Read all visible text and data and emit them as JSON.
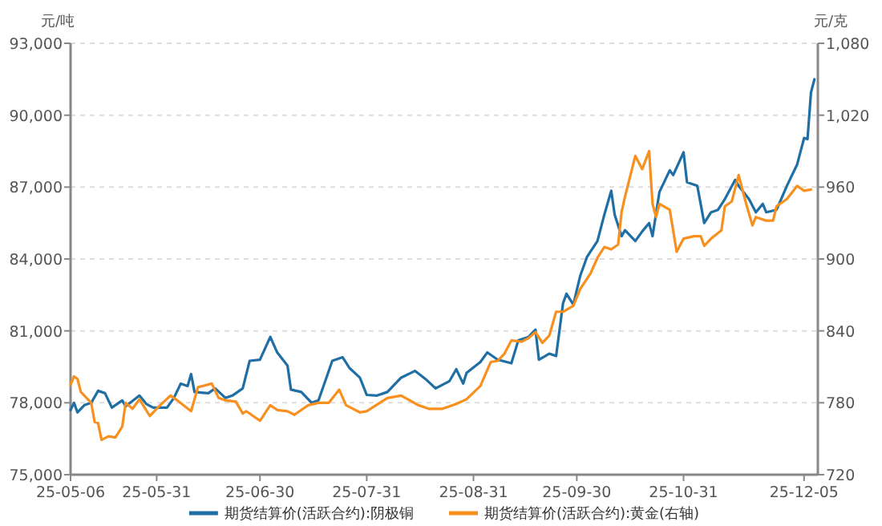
{
  "chart_data": {
    "type": "line",
    "ylabel": "元/吨",
    "y2label": "元/克",
    "legend": "bottom",
    "grid": "y",
    "marker": "none",
    "line_style": "solid",
    "xlim": [
      "--05-06",
      "--12-09"
    ],
    "xticks": [
      {
        "value": "--05-06",
        "label": "25-05-06"
      },
      {
        "value": "--05-31",
        "label": "25-05-31"
      },
      {
        "value": "--06-30",
        "label": "25-06-30"
      },
      {
        "value": "--07-31",
        "label": "25-07-31"
      },
      {
        "value": "--08-31",
        "label": "25-08-31"
      },
      {
        "value": "--09-30",
        "label": "25-09-30"
      },
      {
        "value": "--10-31",
        "label": "25-10-31"
      },
      {
        "value": "--12-05",
        "label": "25-12-05"
      }
    ],
    "ylim": [
      75000,
      93000
    ],
    "yticks": [
      {
        "value": 75000,
        "label": "75,000"
      },
      {
        "value": 78000,
        "label": "78,000"
      },
      {
        "value": 81000,
        "label": "81,000"
      },
      {
        "value": 84000,
        "label": "84,000"
      },
      {
        "value": 87000,
        "label": "87,000"
      },
      {
        "value": 90000,
        "label": "90,000"
      },
      {
        "value": 93000,
        "label": "93,000"
      }
    ],
    "y2lim": [
      720,
      1080
    ],
    "y2ticks": [
      720,
      780,
      840,
      900,
      960,
      {
        "value": 1020,
        "label": "1,020"
      },
      {
        "value": 1080,
        "label": "1,080"
      }
    ],
    "series": [
      {
        "name": "期货结算价(活跃合约):阴极铜",
        "color": "#1f6fa5",
        "x": [
          "--05-06",
          "--05-07",
          "--05-08",
          "--05-10",
          "--05-12",
          "--05-14",
          "--05-16",
          "--05-18",
          "--05-21",
          "--05-22",
          "--05-26",
          "--05-28",
          "--05-30",
          "--06-03",
          "--06-05",
          "--06-07",
          "--06-09",
          "--06-10",
          "--06-11",
          "--06-15",
          "--06-17",
          "--06-20",
          "--06-22",
          "--06-25",
          "--06-27",
          "--06-30",
          "--07-03",
          "--07-05",
          "--07-08",
          "--07-09",
          "--07-12",
          "--07-15",
          "--07-17",
          "--07-21",
          "--07-24",
          "--07-26",
          "--07-29",
          "--07-31",
          "--08-03",
          "--08-06",
          "--08-10",
          "--08-14",
          "--08-17",
          "--08-20",
          "--08-24",
          "--08-26",
          "--08-28",
          "--08-29",
          "--09-02",
          "--09-04",
          "--09-07",
          "--09-11",
          "--09-13",
          "--09-16",
          "--09-18",
          "--09-19",
          "--09-22",
          "--09-24",
          "--09-26",
          "--09-27",
          "--09-29",
          "--10-01",
          "--10-03",
          "--10-06",
          "--10-08",
          "--10-10",
          "--10-11",
          "--10-13",
          "--10-14",
          "--10-17",
          "--10-19",
          "--10-21",
          "--10-22",
          "--10-24",
          "--10-27",
          "--10-28",
          "--10-31",
          "--11-01",
          "--11-04",
          "--11-06",
          "--11-08",
          "--11-10",
          "--11-12",
          "--11-15",
          "--11-16",
          "--11-19",
          "--11-21",
          "--11-23",
          "--11-24",
          "--11-27",
          "--11-30",
          "--12-03",
          "--12-05",
          "--12-06",
          "--12-07",
          "--12-08"
        ],
        "values": [
          77700,
          78000,
          77600,
          77900,
          78000,
          78500,
          78400,
          77800,
          78100,
          77850,
          78300,
          77950,
          77800,
          77800,
          78200,
          78800,
          78700,
          79200,
          78450,
          78400,
          78600,
          78200,
          78300,
          78600,
          79750,
          79800,
          80750,
          80100,
          79550,
          78550,
          78450,
          78000,
          78100,
          79750,
          79900,
          79450,
          79050,
          78330,
          78300,
          78450,
          79050,
          79330,
          79000,
          78600,
          78900,
          79400,
          78800,
          79250,
          79700,
          80100,
          79800,
          79650,
          80600,
          80750,
          81050,
          79800,
          80050,
          79950,
          82150,
          82550,
          82100,
          83300,
          84100,
          84750,
          85850,
          86850,
          85850,
          84950,
          85200,
          84750,
          85150,
          85500,
          84950,
          86800,
          87700,
          87500,
          88450,
          87200,
          87050,
          85500,
          85950,
          86050,
          86500,
          87300,
          87050,
          86500,
          85950,
          86300,
          85950,
          86050,
          87050,
          87950,
          89050,
          89000,
          90950,
          91500
        ]
      },
      {
        "name": "期货结算价(活跃合约):黄金(右轴)",
        "color": "#f7901e",
        "axis": "y2",
        "x": [
          "--05-06",
          "--05-07",
          "--05-08",
          "--05-09",
          "--05-12",
          "--05-13",
          "--05-14",
          "--05-15",
          "--05-17",
          "--05-19",
          "--05-21",
          "--05-22",
          "--05-24",
          "--05-26",
          "--05-29",
          "--06-01",
          "--06-04",
          "--06-06",
          "--06-10",
          "--06-12",
          "--06-16",
          "--06-18",
          "--06-20",
          "--06-23",
          "--06-25",
          "--06-26",
          "--06-30",
          "--07-03",
          "--07-05",
          "--07-08",
          "--07-10",
          "--07-14",
          "--07-17",
          "--07-20",
          "--07-23",
          "--07-25",
          "--07-29",
          "--07-31",
          "--08-06",
          "--08-10",
          "--08-15",
          "--08-18",
          "--08-22",
          "--08-26",
          "--08-29",
          "--09-02",
          "--09-05",
          "--09-07",
          "--09-09",
          "--09-11",
          "--09-14",
          "--09-16",
          "--09-18",
          "--09-20",
          "--09-22",
          "--09-24",
          "--09-26",
          "--09-29",
          "--10-01",
          "--10-04",
          "--10-06",
          "--10-08",
          "--10-10",
          "--10-12",
          "--10-13",
          "--10-14",
          "--10-17",
          "--10-19",
          "--10-21",
          "--10-22",
          "--10-23",
          "--10-24",
          "--10-27",
          "--10-29",
          "--10-31",
          "--11-03",
          "--11-05",
          "--11-06",
          "--11-08",
          "--11-11",
          "--11-12",
          "--11-14",
          "--11-16",
          "--11-18",
          "--11-20",
          "--11-21",
          "--11-24",
          "--11-26",
          "--11-27",
          "--11-30",
          "--12-03",
          "--12-05",
          "--12-07"
        ],
        "values": [
          795,
          802,
          800,
          789,
          780,
          764,
          763,
          749,
          752,
          751,
          760,
          780,
          775,
          783,
          769,
          778,
          786,
          782,
          773,
          793,
          796,
          784,
          782,
          781,
          771,
          773,
          765,
          778,
          774,
          773,
          770,
          778,
          780,
          780,
          791,
          778,
          772,
          773,
          784,
          786,
          778,
          775,
          775,
          779,
          783,
          794,
          814,
          815,
          821,
          832,
          831,
          834,
          839,
          830,
          836,
          856,
          856,
          861,
          875,
          888,
          901,
          910,
          908,
          912,
          939,
          952,
          986,
          975,
          990,
          946,
          935,
          946,
          941,
          906,
          917,
          919,
          919,
          911,
          917,
          924,
          944,
          948,
          970,
          948,
          928,
          935,
          932,
          932,
          944,
          950,
          961,
          957,
          958
        ]
      }
    ]
  }
}
